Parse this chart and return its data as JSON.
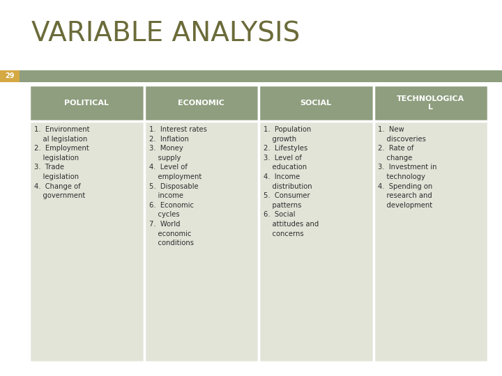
{
  "title": "VARIABLE ANALYSIS",
  "title_color": "#6B6B3A",
  "title_fontsize": 28,
  "page_number": "29",
  "page_num_bg": "#D4A843",
  "header_bg": "#8E9E7E",
  "header_text_color": "#FFFFFF",
  "cell_bg": "#E2E4D8",
  "border_color": "#FFFFFF",
  "text_color": "#2E2E2E",
  "headers": [
    "POLITICAL",
    "ECONOMIC",
    "SOCIAL",
    "TECHNOLOGICA\nL"
  ],
  "col_contents": [
    "1.  Environment\n    al legislation\n2.  Employment\n    legislation\n3.  Trade\n    legislation\n4.  Change of\n    government",
    "1.  Interest rates\n2.  Inflation\n3.  Money\n    supply\n4.  Level of\n    employment\n5.  Disposable\n    income\n6.  Economic\n    cycles\n7.  World\n    economic\n    conditions",
    "1.  Population\n    growth\n2.  Lifestyles\n3.  Level of\n    education\n4.  Income\n    distribution\n5.  Consumer\n    patterns\n6.  Social\n    attitudes and\n    concerns",
    "1.  New\n    discoveries\n2.  Rate of\n    change\n3.  Investment in\n    technology\n4.  Spending on\n    research and\n    development"
  ],
  "fig_w": 7.2,
  "fig_h": 5.4,
  "dpi": 100
}
